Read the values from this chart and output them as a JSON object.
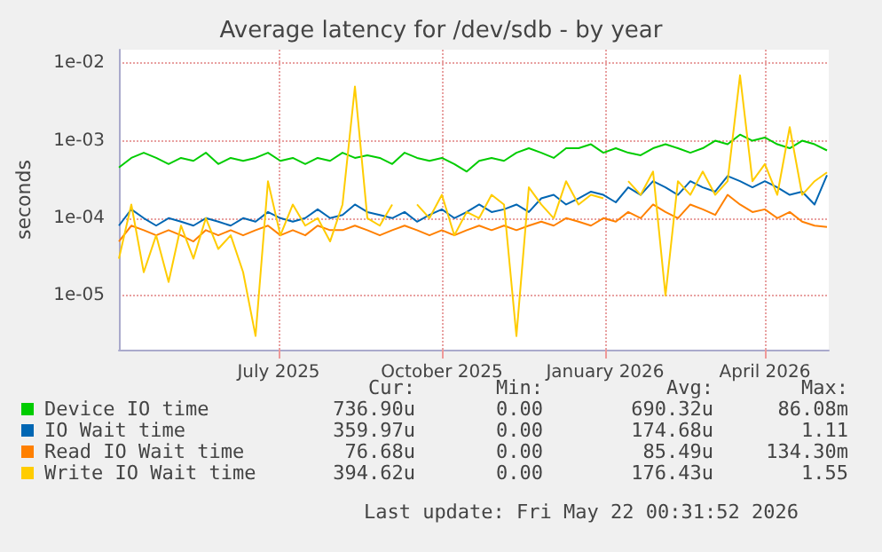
{
  "chart_data": {
    "type": "line",
    "title": "Average latency for /dev/sdb - by year",
    "ylabel": "seconds",
    "x": [
      "2025-04-17",
      "2025-04-24",
      "2025-05-01",
      "2025-05-08",
      "2025-05-15",
      "2025-05-22",
      "2025-05-29",
      "2025-06-05",
      "2025-06-12",
      "2025-06-19",
      "2025-06-26",
      "2025-07-03",
      "2025-07-10",
      "2025-07-17",
      "2025-07-24",
      "2025-07-31",
      "2025-08-07",
      "2025-08-14",
      "2025-08-21",
      "2025-08-28",
      "2025-09-04",
      "2025-09-11",
      "2025-09-18",
      "2025-09-25",
      "2025-10-02",
      "2025-10-09",
      "2025-10-16",
      "2025-10-23",
      "2025-10-30",
      "2025-11-06",
      "2025-11-13",
      "2025-11-20",
      "2025-11-27",
      "2025-12-04",
      "2025-12-11",
      "2025-12-18",
      "2025-12-25",
      "2026-01-01",
      "2026-01-08",
      "2026-01-15",
      "2026-01-22",
      "2026-01-29",
      "2026-02-05",
      "2026-02-12",
      "2026-02-19",
      "2026-02-26",
      "2026-03-05",
      "2026-03-12",
      "2026-03-19",
      "2026-03-26",
      "2026-04-02",
      "2026-04-09",
      "2026-04-16",
      "2026-04-23",
      "2026-04-30",
      "2026-05-07",
      "2026-05-14",
      "2026-05-21"
    ],
    "series": [
      {
        "name": "Device IO time",
        "color": "#00cc00",
        "values": [
          0.00045,
          0.0006,
          0.0007,
          0.0006,
          0.0005,
          0.0006,
          0.00055,
          0.0007,
          0.0005,
          0.0006,
          0.00055,
          0.0006,
          0.0007,
          0.00055,
          0.0006,
          0.0005,
          0.0006,
          0.00055,
          0.0007,
          0.0006,
          0.00065,
          0.0006,
          0.0005,
          0.0007,
          0.0006,
          0.00055,
          0.0006,
          0.0005,
          0.0004,
          0.00055,
          0.0006,
          0.00055,
          0.0007,
          0.0008,
          0.0007,
          0.0006,
          0.0008,
          0.0008,
          0.0009,
          0.0007,
          0.0008,
          0.0007,
          0.00065,
          0.0008,
          0.0009,
          0.0008,
          0.0007,
          0.0008,
          0.001,
          0.0009,
          0.0012,
          0.001,
          0.0011,
          0.0009,
          0.0008,
          0.001,
          0.0009,
          0.00075
        ]
      },
      {
        "name": "IO Wait time",
        "color": "#0066b3",
        "values": [
          8e-05,
          0.00013,
          0.0001,
          8e-05,
          0.0001,
          9e-05,
          8e-05,
          0.0001,
          9e-05,
          8e-05,
          0.0001,
          9e-05,
          0.00012,
          0.0001,
          9e-05,
          0.0001,
          0.00013,
          0.0001,
          0.00011,
          0.00015,
          0.00012,
          0.00011,
          0.0001,
          0.00012,
          9e-05,
          0.00011,
          0.00013,
          0.0001,
          0.00012,
          0.00015,
          0.00012,
          0.00013,
          0.00015,
          0.00012,
          0.00018,
          0.0002,
          0.00015,
          0.00018,
          0.00022,
          0.0002,
          0.00016,
          0.00025,
          0.0002,
          0.0003,
          0.00025,
          0.0002,
          0.0003,
          0.00025,
          0.00022,
          0.00035,
          0.0003,
          0.00025,
          0.0003,
          0.00025,
          0.0002,
          0.00022,
          0.00015,
          0.00036
        ]
      },
      {
        "name": "Read IO Wait time",
        "color": "#ff8000",
        "values": [
          5e-05,
          8e-05,
          7e-05,
          6e-05,
          7e-05,
          6e-05,
          5e-05,
          7e-05,
          6e-05,
          7e-05,
          6e-05,
          7e-05,
          8e-05,
          6e-05,
          7e-05,
          6e-05,
          8e-05,
          7e-05,
          7e-05,
          8e-05,
          7e-05,
          6e-05,
          7e-05,
          8e-05,
          7e-05,
          6e-05,
          7e-05,
          6e-05,
          7e-05,
          8e-05,
          7e-05,
          8e-05,
          7e-05,
          8e-05,
          9e-05,
          8e-05,
          0.0001,
          9e-05,
          8e-05,
          0.0001,
          9e-05,
          0.00012,
          0.0001,
          0.00015,
          0.00012,
          0.0001,
          0.00015,
          0.00013,
          0.00011,
          0.0002,
          0.00015,
          0.00012,
          0.00013,
          0.0001,
          0.00012,
          9e-05,
          8e-05,
          7.7e-05
        ]
      },
      {
        "name": "Write IO Wait time",
        "color": "#ffcc00",
        "values": [
          3e-05,
          0.00015,
          2e-05,
          6e-05,
          1.5e-05,
          8e-05,
          3e-05,
          0.0001,
          4e-05,
          6e-05,
          2e-05,
          3e-06,
          0.0003,
          6e-05,
          0.00015,
          8e-05,
          0.0001,
          5e-05,
          0.00015,
          0.005,
          0.0001,
          8e-05,
          0.00015,
          null,
          0.00015,
          0.0001,
          0.0002,
          6e-05,
          0.00012,
          0.0001,
          0.0002,
          0.00015,
          3e-06,
          0.00025,
          0.00015,
          0.0001,
          0.0003,
          0.00015,
          0.0002,
          0.00018,
          null,
          0.0003,
          0.0002,
          0.0004,
          1e-05,
          0.0003,
          0.0002,
          0.0004,
          0.0002,
          0.0003,
          0.007,
          0.0003,
          0.0005,
          0.0002,
          0.0015,
          0.0002,
          0.0003,
          0.00039
        ]
      }
    ],
    "xlim": [
      "2025-04-17",
      "2026-05-22"
    ],
    "xticks": [
      {
        "value": "2025-07-16",
        "label": "July 2025"
      },
      {
        "value": "2025-10-16",
        "label": "October 2025"
      },
      {
        "value": "2026-01-16",
        "label": "January 2026"
      },
      {
        "value": "2026-04-16",
        "label": "April 2026"
      }
    ],
    "ylim": [
      2e-06,
      0.015
    ],
    "yticks": [
      {
        "value": 1e-05,
        "label": "1e-05"
      },
      {
        "value": 0.0001,
        "label": "1e-04"
      },
      {
        "value": 0.001,
        "label": "1e-03"
      },
      {
        "value": 0.01,
        "label": "1e-02"
      }
    ],
    "log": "y",
    "grid": true,
    "legend": "bottom",
    "marker": "none",
    "line_style": "solid",
    "annotations": [
      "Cur:",
      "Min:",
      "Avg:",
      "Max:",
      "736.90u",
      "0.00",
      "690.32u",
      "86.08m",
      "359.97u",
      "0.00",
      "174.68u",
      "1.11",
      "76.68u",
      "0.00",
      "85.49u",
      "134.30m",
      "394.62u",
      "0.00",
      "176.43u",
      "1.55",
      "Last update: Fri May 22 00:31:52 2026"
    ]
  }
}
